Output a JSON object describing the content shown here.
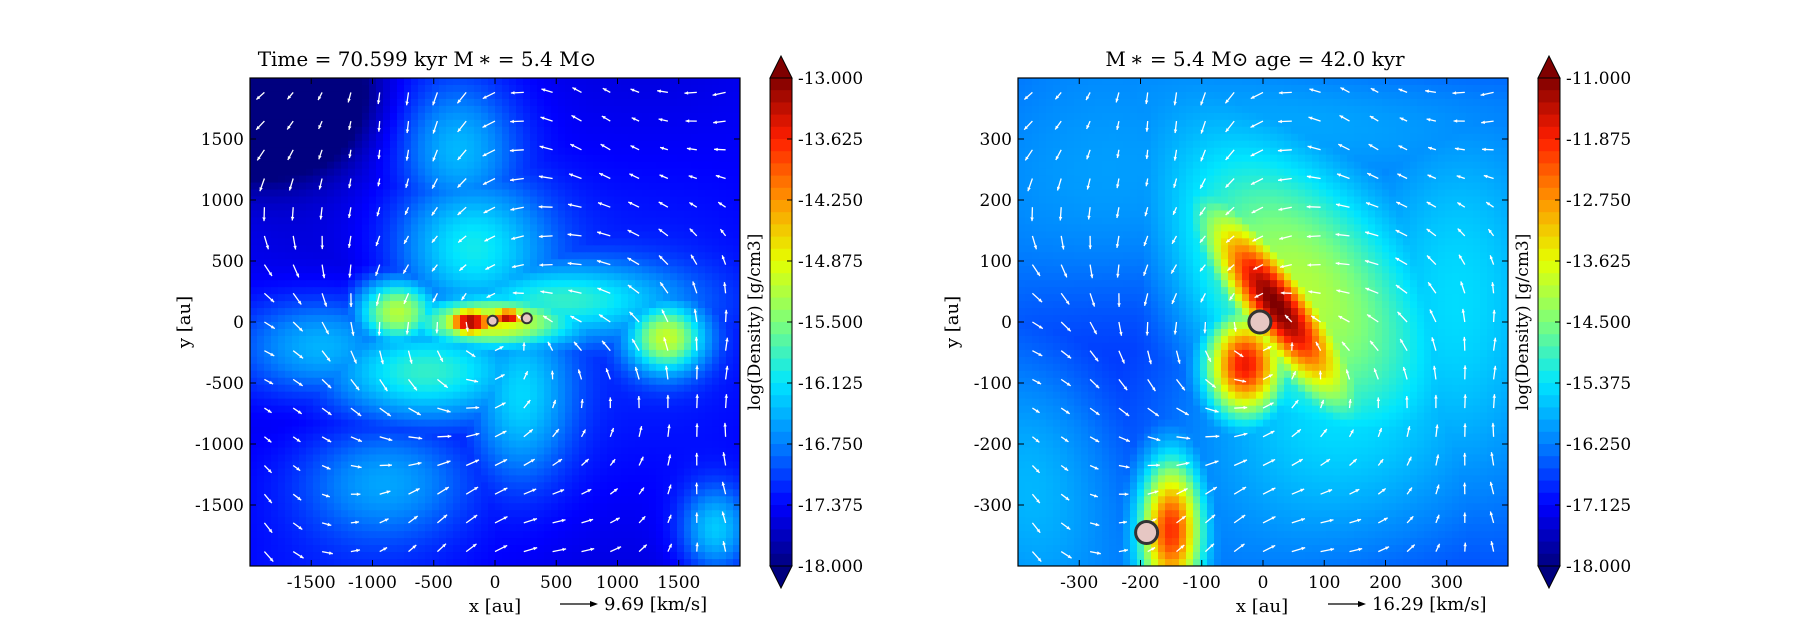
{
  "colormap": {
    "stops": [
      "#00007f",
      "#0000ff",
      "#0080ff",
      "#00e5ff",
      "#7dff7a",
      "#e5ff00",
      "#ff9400",
      "#ff1e00",
      "#7f0000"
    ],
    "vector_color": "#ffffff",
    "sink_fill": "#e6c7c3",
    "sink_stroke": "#333333"
  },
  "chart_data": [
    {
      "type": "heatmap",
      "subtype": "density slice with velocity vectors",
      "title": "Time = 70.599 kyr    M ∗ = 5.4 M⊙",
      "xlabel": "x [au]",
      "ylabel": "y [au]",
      "xlim": [
        -2000,
        2000
      ],
      "ylim": [
        -2000,
        2000
      ],
      "xticks": [
        -1500,
        -1000,
        -500,
        0,
        500,
        1000,
        1500
      ],
      "xtick_labels": [
        "-1500",
        "-1000",
        "-500",
        "0",
        "500",
        "1000",
        "1500"
      ],
      "yticks": [
        1500,
        1000,
        500,
        0,
        -500,
        -1000,
        -1500
      ],
      "ytick_labels": [
        "1500",
        "1000",
        "500",
        "0",
        "-500",
        "-1000",
        "-1500"
      ],
      "vector_key": "9.69 [km/s]",
      "colorbar": {
        "label": "log(Density) [g/cm3]",
        "range": [
          -18.0,
          -13.0
        ],
        "ticks": [
          -13.0,
          -13.625,
          -14.25,
          -14.875,
          -15.5,
          -16.125,
          -16.75,
          -17.375,
          -18.0
        ],
        "tick_labels": [
          "-13.000",
          "-13.625",
          "-14.250",
          "-14.875",
          "-15.500",
          "-16.125",
          "-16.750",
          "-17.375",
          "-18.000"
        ]
      },
      "sinks": [
        {
          "x": -20,
          "y": 10
        },
        {
          "x": 260,
          "y": 30
        }
      ],
      "structures": [
        {
          "x": -200,
          "y": 0,
          "sx": 160,
          "sy": 90,
          "level": 1.0
        },
        {
          "x": 100,
          "y": 40,
          "sx": 120,
          "sy": 60,
          "level": 0.95
        },
        {
          "x": -50,
          "y": 0,
          "sx": 500,
          "sy": 160,
          "level": 0.65
        },
        {
          "x": -800,
          "y": 80,
          "sx": 250,
          "sy": 200,
          "level": 0.6
        },
        {
          "x": 1400,
          "y": -130,
          "sx": 220,
          "sy": 200,
          "level": 0.55
        },
        {
          "x": 500,
          "y": 180,
          "sx": 700,
          "sy": 220,
          "level": 0.4
        },
        {
          "x": -600,
          "y": -400,
          "sx": 600,
          "sy": 300,
          "level": 0.45
        },
        {
          "x": -200,
          "y": 600,
          "sx": 450,
          "sy": 420,
          "level": 0.4
        },
        {
          "x": -1400,
          "y": -200,
          "sx": 500,
          "sy": 300,
          "level": 0.35
        },
        {
          "x": 200,
          "y": -600,
          "sx": 300,
          "sy": 500,
          "level": 0.35
        },
        {
          "x": -900,
          "y": -1300,
          "sx": 500,
          "sy": 350,
          "level": 0.3
        },
        {
          "x": -300,
          "y": 1400,
          "sx": 350,
          "sy": 400,
          "level": 0.32
        },
        {
          "x": 1800,
          "y": -1700,
          "sx": 200,
          "sy": 250,
          "level": 0.35
        },
        {
          "x": -1900,
          "y": 1900,
          "sx": 500,
          "sy": 400,
          "level": -0.6
        }
      ],
      "base_level": 0.12
    },
    {
      "type": "heatmap",
      "subtype": "density slice with velocity vectors",
      "title": "M ∗ = 5.4 M⊙        age = 42.0 kyr",
      "xlabel": "x [au]",
      "ylabel": "y [au]",
      "xlim": [
        -400,
        400
      ],
      "ylim": [
        -400,
        400
      ],
      "xticks": [
        -300,
        -200,
        -100,
        0,
        100,
        200,
        300
      ],
      "xtick_labels": [
        "-300",
        "-200",
        "-100",
        "0",
        "100",
        "200",
        "300"
      ],
      "yticks": [
        300,
        200,
        100,
        0,
        -100,
        -200,
        -300
      ],
      "ytick_labels": [
        "300",
        "200",
        "100",
        "0",
        "-100",
        "-200",
        "-300"
      ],
      "vector_key": "16.29 [km/s]",
      "colorbar": {
        "label": "log(Density) [g/cm3]",
        "range": [
          -18.0,
          -11.0
        ],
        "ticks": [
          -11.0,
          -11.875,
          -12.75,
          -13.625,
          -14.5,
          -15.375,
          -16.25,
          -17.125,
          -18.0
        ],
        "tick_labels": [
          "-11.000",
          "-11.875",
          "-12.750",
          "-13.625",
          "-14.500",
          "-15.375",
          "-16.250",
          "-17.125",
          "-18.000"
        ]
      },
      "sinks": [
        {
          "x": -5,
          "y": 0
        },
        {
          "x": -190,
          "y": -345
        }
      ],
      "structures": [
        {
          "x": 20,
          "y": 30,
          "sx": 40,
          "sy": 130,
          "rot": -35,
          "level": 1.0
        },
        {
          "x": -30,
          "y": -70,
          "sx": 45,
          "sy": 60,
          "level": 0.9
        },
        {
          "x": 50,
          "y": 60,
          "sx": 120,
          "sy": 200,
          "rot": -35,
          "level": 0.55
        },
        {
          "x": -150,
          "y": -340,
          "sx": 35,
          "sy": 80,
          "level": 0.85
        },
        {
          "x": 110,
          "y": -150,
          "sx": 180,
          "sy": 180,
          "level": 0.35
        },
        {
          "x": -250,
          "y": 200,
          "sx": 200,
          "sy": 150,
          "level": 0.3
        },
        {
          "x": -380,
          "y": -250,
          "sx": 100,
          "sy": 150,
          "level": 0.32
        },
        {
          "x": 330,
          "y": 50,
          "sx": 120,
          "sy": 250,
          "level": 0.33
        },
        {
          "x": 100,
          "y": 330,
          "sx": 300,
          "sy": 80,
          "level": 0.3
        }
      ],
      "base_level": 0.2
    }
  ]
}
